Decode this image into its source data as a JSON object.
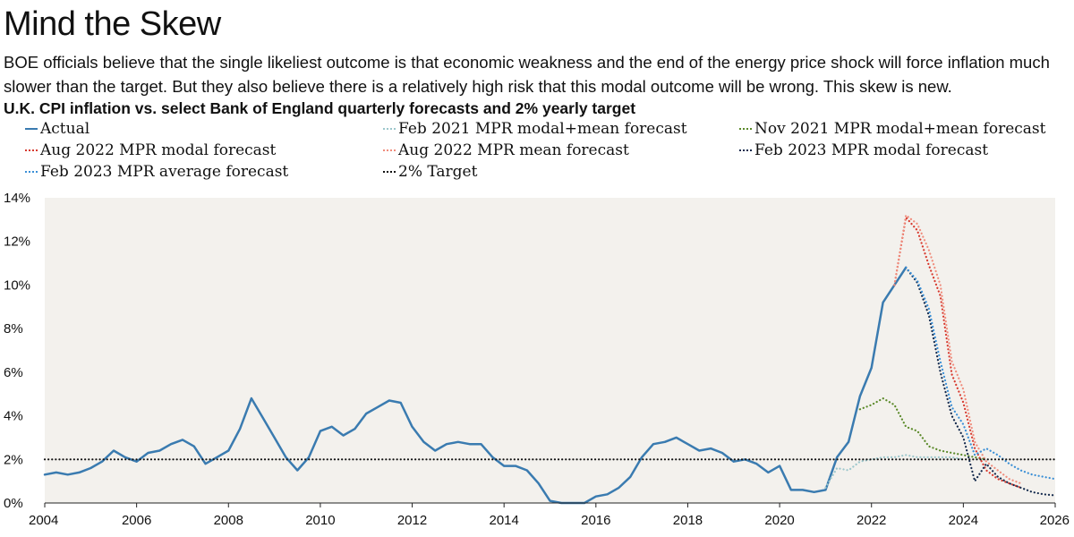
{
  "title": "Mind the Skew",
  "subtitle": "BOE officials believe that the single likeliest outcome is that economic weakness and the end of the energy price shock will force inflation much slower than the target. But they also believe there is a relatively high risk that this modal outcome will be wrong. This skew is new.",
  "chart_data": {
    "type": "line",
    "title": "U.K. CPI inflation vs. select Bank of England quarterly forecasts and 2% yearly target",
    "xlim": [
      2004,
      2026
    ],
    "ylim": [
      0,
      14
    ],
    "x_ticks": [
      2004,
      2006,
      2008,
      2010,
      2012,
      2014,
      2016,
      2018,
      2020,
      2022,
      2024,
      2026
    ],
    "x_tick_labels": [
      "2004",
      "2006",
      "2008",
      "2010",
      "2012",
      "2014",
      "2016",
      "2018",
      "2020",
      "2022",
      "2024",
      "2026"
    ],
    "y_ticks": [
      0,
      2,
      4,
      6,
      8,
      10,
      12,
      14
    ],
    "y_tick_labels": [
      "0%",
      "2%",
      "4%",
      "6%",
      "8%",
      "10%",
      "12%",
      "14%"
    ],
    "background": "#f3f1ed",
    "legend_position": "top",
    "series": [
      {
        "name": "Actual",
        "color": "#3a7bb0",
        "style": "solid",
        "points": [
          [
            2004.0,
            1.3
          ],
          [
            2004.25,
            1.4
          ],
          [
            2004.5,
            1.3
          ],
          [
            2004.75,
            1.4
          ],
          [
            2005.0,
            1.6
          ],
          [
            2005.25,
            1.9
          ],
          [
            2005.5,
            2.4
          ],
          [
            2005.75,
            2.1
          ],
          [
            2006.0,
            1.9
          ],
          [
            2006.25,
            2.3
          ],
          [
            2006.5,
            2.4
          ],
          [
            2006.75,
            2.7
          ],
          [
            2007.0,
            2.9
          ],
          [
            2007.25,
            2.6
          ],
          [
            2007.5,
            1.8
          ],
          [
            2007.75,
            2.1
          ],
          [
            2008.0,
            2.4
          ],
          [
            2008.25,
            3.4
          ],
          [
            2008.5,
            4.8
          ],
          [
            2008.75,
            3.9
          ],
          [
            2009.0,
            3.0
          ],
          [
            2009.25,
            2.1
          ],
          [
            2009.5,
            1.5
          ],
          [
            2009.75,
            2.1
          ],
          [
            2010.0,
            3.3
          ],
          [
            2010.25,
            3.5
          ],
          [
            2010.5,
            3.1
          ],
          [
            2010.75,
            3.4
          ],
          [
            2011.0,
            4.1
          ],
          [
            2011.25,
            4.4
          ],
          [
            2011.5,
            4.7
          ],
          [
            2011.75,
            4.6
          ],
          [
            2012.0,
            3.5
          ],
          [
            2012.25,
            2.8
          ],
          [
            2012.5,
            2.4
          ],
          [
            2012.75,
            2.7
          ],
          [
            2013.0,
            2.8
          ],
          [
            2013.25,
            2.7
          ],
          [
            2013.5,
            2.7
          ],
          [
            2013.75,
            2.1
          ],
          [
            2014.0,
            1.7
          ],
          [
            2014.25,
            1.7
          ],
          [
            2014.5,
            1.5
          ],
          [
            2014.75,
            0.9
          ],
          [
            2015.0,
            0.1
          ],
          [
            2015.25,
            0.0
          ],
          [
            2015.5,
            0.0
          ],
          [
            2015.75,
            0.0
          ],
          [
            2016.0,
            0.3
          ],
          [
            2016.25,
            0.4
          ],
          [
            2016.5,
            0.7
          ],
          [
            2016.75,
            1.2
          ],
          [
            2017.0,
            2.1
          ],
          [
            2017.25,
            2.7
          ],
          [
            2017.5,
            2.8
          ],
          [
            2017.75,
            3.0
          ],
          [
            2018.0,
            2.7
          ],
          [
            2018.25,
            2.4
          ],
          [
            2018.5,
            2.5
          ],
          [
            2018.75,
            2.3
          ],
          [
            2019.0,
            1.9
          ],
          [
            2019.25,
            2.0
          ],
          [
            2019.5,
            1.8
          ],
          [
            2019.75,
            1.4
          ],
          [
            2020.0,
            1.7
          ],
          [
            2020.25,
            0.6
          ],
          [
            2020.5,
            0.6
          ],
          [
            2020.75,
            0.5
          ],
          [
            2021.0,
            0.6
          ],
          [
            2021.25,
            2.1
          ],
          [
            2021.5,
            2.8
          ],
          [
            2021.75,
            4.9
          ],
          [
            2022.0,
            6.2
          ],
          [
            2022.25,
            9.2
          ],
          [
            2022.5,
            10.0
          ],
          [
            2022.75,
            10.8
          ]
        ]
      },
      {
        "name": "Feb 2021 MPR modal+mean forecast",
        "color": "#9cc7cc",
        "style": "dotted",
        "points": [
          [
            2021.0,
            0.7
          ],
          [
            2021.25,
            1.6
          ],
          [
            2021.5,
            1.5
          ],
          [
            2021.75,
            1.9
          ],
          [
            2022.0,
            2.0
          ],
          [
            2022.25,
            2.1
          ],
          [
            2022.5,
            2.1
          ],
          [
            2022.75,
            2.2
          ],
          [
            2023.0,
            2.1
          ],
          [
            2023.25,
            2.1
          ],
          [
            2023.5,
            2.1
          ],
          [
            2023.75,
            2.1
          ],
          [
            2024.0,
            2.0
          ]
        ]
      },
      {
        "name": "Nov 2021 MPR modal+mean forecast",
        "color": "#5b8a2a",
        "style": "dotted",
        "points": [
          [
            2021.75,
            4.3
          ],
          [
            2022.0,
            4.5
          ],
          [
            2022.25,
            4.8
          ],
          [
            2022.5,
            4.5
          ],
          [
            2022.75,
            3.5
          ],
          [
            2023.0,
            3.3
          ],
          [
            2023.25,
            2.6
          ],
          [
            2023.5,
            2.4
          ],
          [
            2023.75,
            2.3
          ],
          [
            2024.0,
            2.2
          ],
          [
            2024.25,
            2.1
          ],
          [
            2024.5,
            2.0
          ]
        ]
      },
      {
        "name": "Aug 2022 MPR modal forecast",
        "color": "#d73a2f",
        "style": "dotted",
        "points": [
          [
            2022.5,
            10.0
          ],
          [
            2022.75,
            13.1
          ],
          [
            2023.0,
            12.5
          ],
          [
            2023.25,
            10.9
          ],
          [
            2023.5,
            9.5
          ],
          [
            2023.75,
            5.9
          ],
          [
            2024.0,
            4.6
          ],
          [
            2024.25,
            2.5
          ],
          [
            2024.5,
            1.5
          ],
          [
            2024.75,
            1.1
          ],
          [
            2025.0,
            0.9
          ],
          [
            2025.25,
            0.7
          ]
        ]
      },
      {
        "name": "Aug 2022 MPR mean forecast",
        "color": "#f08c7c",
        "style": "dotted",
        "points": [
          [
            2022.5,
            10.0
          ],
          [
            2022.75,
            13.2
          ],
          [
            2023.0,
            12.8
          ],
          [
            2023.25,
            11.6
          ],
          [
            2023.5,
            10.0
          ],
          [
            2023.75,
            6.5
          ],
          [
            2024.0,
            5.2
          ],
          [
            2024.25,
            2.8
          ],
          [
            2024.5,
            1.9
          ],
          [
            2024.75,
            1.5
          ],
          [
            2025.0,
            1.1
          ],
          [
            2025.25,
            0.9
          ]
        ]
      },
      {
        "name": "Feb 2023 MPR modal forecast",
        "color": "#142a4d",
        "style": "dotted",
        "points": [
          [
            2022.75,
            10.8
          ],
          [
            2023.0,
            10.1
          ],
          [
            2023.25,
            8.6
          ],
          [
            2023.5,
            6.0
          ],
          [
            2023.75,
            4.0
          ],
          [
            2024.0,
            3.0
          ],
          [
            2024.25,
            1.0
          ],
          [
            2024.5,
            1.8
          ],
          [
            2024.75,
            1.2
          ],
          [
            2025.0,
            0.9
          ],
          [
            2025.25,
            0.7
          ],
          [
            2025.5,
            0.5
          ],
          [
            2025.75,
            0.4
          ],
          [
            2026.0,
            0.35
          ]
        ]
      },
      {
        "name": "Feb 2023 MPR average forecast",
        "color": "#3a8fd6",
        "style": "dotted",
        "points": [
          [
            2022.75,
            10.8
          ],
          [
            2023.0,
            10.2
          ],
          [
            2023.25,
            8.9
          ],
          [
            2023.5,
            6.5
          ],
          [
            2023.75,
            4.4
          ],
          [
            2024.0,
            3.6
          ],
          [
            2024.25,
            2.2
          ],
          [
            2024.5,
            2.5
          ],
          [
            2024.75,
            2.2
          ],
          [
            2025.0,
            1.8
          ],
          [
            2025.25,
            1.5
          ],
          [
            2025.5,
            1.3
          ],
          [
            2025.75,
            1.2
          ],
          [
            2026.0,
            1.1
          ]
        ]
      },
      {
        "name": "2% Target",
        "color": "#111111",
        "style": "dotted",
        "points": [
          [
            2004.0,
            2.0
          ],
          [
            2026.0,
            2.0
          ]
        ]
      }
    ]
  }
}
